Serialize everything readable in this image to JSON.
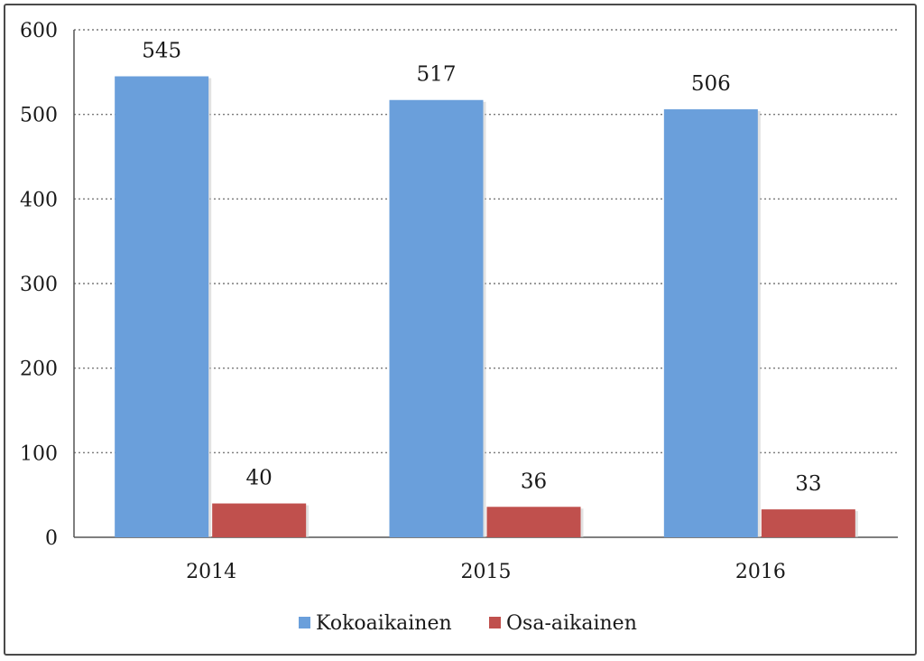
{
  "chart_data": {
    "type": "bar",
    "categories": [
      "2014",
      "2015",
      "2016"
    ],
    "series": [
      {
        "name": "Kokoaikainen",
        "values": [
          545,
          517,
          506
        ],
        "color": "#6a9fdb"
      },
      {
        "name": "Osa-aikainen",
        "values": [
          40,
          36,
          33
        ],
        "color": "#c0504d"
      }
    ],
    "ylim": [
      0,
      600
    ],
    "yticks": [
      0,
      100,
      200,
      300,
      400,
      500,
      600
    ],
    "grid": true,
    "legend_position": "bottom",
    "title": "",
    "xlabel": "",
    "ylabel": ""
  }
}
